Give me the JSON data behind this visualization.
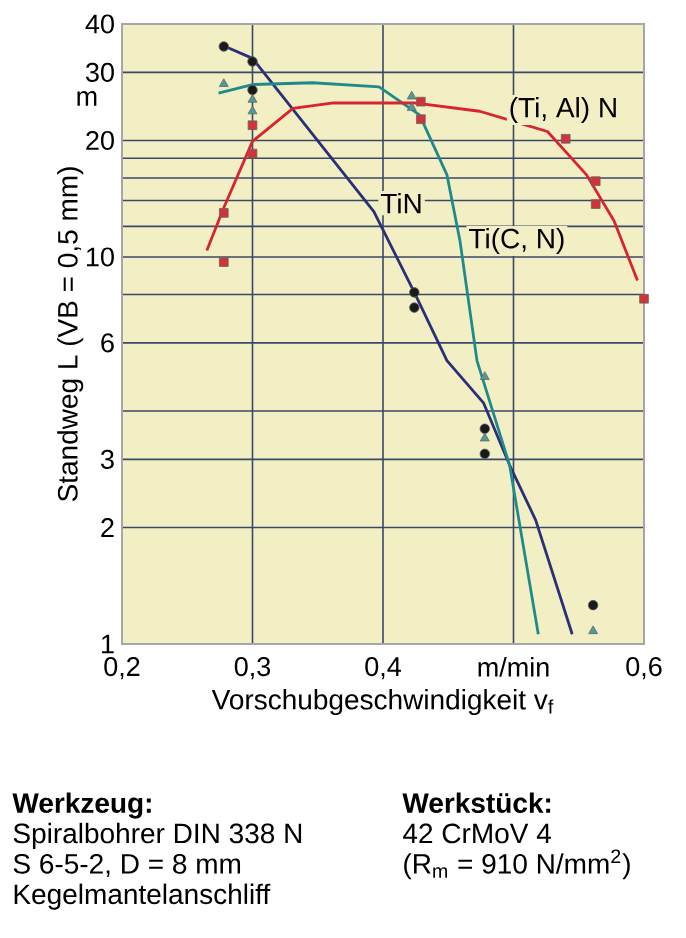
{
  "chart_data": {
    "type": "scatter",
    "xlabel": "Vorschubgeschwindigkeit v$_{f}$",
    "ylabel": "Standweg L  (VB = 0,5 mm)",
    "xlim": [
      0.2,
      0.6
    ],
    "ylim": [
      1,
      40
    ],
    "log": "y",
    "grid": true,
    "xticks": [
      {
        "value": 0.2,
        "label": "0,2"
      },
      {
        "value": 0.3,
        "label": "0,3"
      },
      {
        "value": 0.4,
        "label": "0,4"
      },
      {
        "value": 0.5,
        "label": "m/min"
      },
      {
        "value": 0.6,
        "label": "0,6"
      }
    ],
    "yticks": [
      1,
      2,
      3,
      {
        "value": 4,
        "label": null
      },
      6,
      {
        "value": 8,
        "label": null
      },
      10,
      {
        "value": 12,
        "label": null
      },
      {
        "value": 14,
        "label": null
      },
      {
        "value": 16,
        "label": null
      },
      {
        "value": 18,
        "label": null
      },
      20,
      30,
      40
    ],
    "series": [
      {
        "type": "line",
        "name": "TiN",
        "color": "#2b2f78",
        "x": [
          0.28,
          0.3,
          0.393,
          0.424,
          0.449,
          0.477,
          0.497,
          0.517,
          0.545
        ],
        "values": [
          34.9,
          32.6,
          13.1,
          8.1,
          5.4,
          4.2,
          2.9,
          2.09,
          1.06
        ]
      },
      {
        "type": "line",
        "name": "Ti(C, N)",
        "color": "#1f8a8c",
        "x": [
          0.274,
          0.3,
          0.346,
          0.397,
          0.428,
          0.449,
          0.459,
          0.472,
          0.497,
          0.519
        ],
        "values": [
          26.5,
          27.9,
          28.2,
          27.5,
          23.3,
          16.3,
          11,
          5.4,
          2.9,
          1.06
        ]
      },
      {
        "type": "line",
        "name": "(Ti, Al) N",
        "color": "#d8242f",
        "x": [
          0.265,
          0.278,
          0.3,
          0.331,
          0.362,
          0.424,
          0.474,
          0.526,
          0.556,
          0.577,
          0.595
        ],
        "values": [
          10.4,
          13.4,
          19.9,
          24.2,
          25,
          25,
          23.8,
          21.1,
          16.3,
          12.4,
          8.7
        ]
      },
      {
        "marker": "circle",
        "color": "#1a1a1a",
        "x": [
          0.278,
          0.3,
          0.3,
          0.424,
          0.424,
          0.478,
          0.478,
          0.561
        ],
        "values": [
          35,
          32,
          27,
          8.1,
          7.4,
          3.6,
          3.1,
          1.26
        ]
      },
      {
        "marker": "triangle",
        "color": "#4f9a98",
        "x": [
          0.278,
          0.3,
          0.3,
          0.422,
          0.422,
          0.478,
          0.478,
          0.561
        ],
        "values": [
          28,
          25.5,
          23.8,
          26,
          24.3,
          4.9,
          3.4,
          1.08
        ]
      },
      {
        "marker": "square",
        "color": "#d0333a",
        "x": [
          0.278,
          0.278,
          0.3,
          0.3,
          0.429,
          0.429,
          0.54,
          0.563,
          0.563,
          0.6
        ],
        "values": [
          13,
          9.7,
          18.5,
          21.9,
          25.2,
          22.7,
          20.2,
          15.7,
          13.7,
          7.8
        ]
      }
    ],
    "annotations": [
      "m",
      "Werkzeug:",
      "Spiralbohrer DIN 338 N",
      "S 6-5-2,  D = 8 mm",
      "Kegelmantelanschliff",
      "Werkstück:",
      "42 CrMoV 4",
      "(R$_{m}$ = 910 N/mm$^{2}$)"
    ]
  }
}
